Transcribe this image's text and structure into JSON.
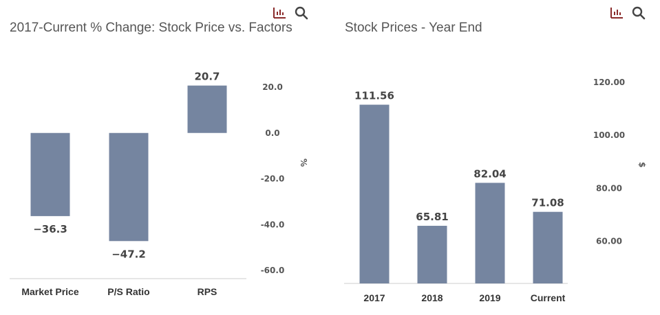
{
  "colors": {
    "bar": "#7585a0",
    "baseline": "#cccccc",
    "icon": "#8a2a2a",
    "search": "#444444"
  },
  "icons": [
    "bar-chart-icon",
    "search-icon"
  ],
  "chart_data": [
    {
      "type": "bar",
      "title": "2017-Current % Change: Stock Price vs. Factors",
      "categories": [
        "Market Price",
        "P/S Ratio",
        "RPS"
      ],
      "values": [
        -36.3,
        -47.2,
        20.7
      ],
      "value_labels": [
        "−36.3",
        "−47.2",
        "20.7"
      ],
      "ylabel": "%",
      "ylim": [
        -60,
        20
      ],
      "yticks": [
        20,
        0,
        -20,
        -40,
        -60
      ],
      "ytick_labels": [
        "20.0",
        "0.0",
        "-20.0",
        "-40.0",
        "-60.0"
      ],
      "y_axis_side": "right",
      "grid": false,
      "legend": "none"
    },
    {
      "type": "bar",
      "title": "Stock Prices - Year End",
      "categories": [
        "2017",
        "2018",
        "2019",
        "Current"
      ],
      "values": [
        111.56,
        65.81,
        82.04,
        71.08
      ],
      "value_labels": [
        "111.56",
        "65.81",
        "82.04",
        "71.08"
      ],
      "ylabel": "$",
      "ylim": [
        50,
        120
      ],
      "yticks": [
        120,
        100,
        80,
        60
      ],
      "ytick_labels": [
        "120.00",
        "100.00",
        "80.00",
        "60.00"
      ],
      "y_axis_side": "right",
      "grid": false,
      "legend": "none"
    }
  ]
}
